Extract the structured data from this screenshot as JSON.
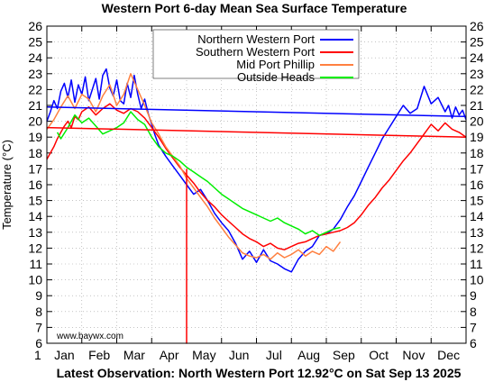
{
  "chart_data": {
    "type": "line",
    "title": "Western Port 6-day Mean Sea Surface Temperature",
    "ylabel": "Temperature (°C)",
    "xlabel": "",
    "footer": "Latest Observation: North Western Port 12.92°C on Sat Sep 13 2025",
    "watermark": "www.baywx.com",
    "ylim": [
      6,
      26
    ],
    "yticks": [
      6,
      7,
      8,
      9,
      10,
      11,
      12,
      13,
      14,
      15,
      16,
      17,
      18,
      19,
      20,
      21,
      22,
      23,
      24,
      25,
      26
    ],
    "xlim": [
      1,
      13
    ],
    "xticks": [
      {
        "x": 1,
        "label": "1"
      },
      {
        "x": 1.5,
        "label": "Jan"
      },
      {
        "x": 2.5,
        "label": "Feb"
      },
      {
        "x": 3.5,
        "label": "Mar"
      },
      {
        "x": 4.5,
        "label": "Apr"
      },
      {
        "x": 5.5,
        "label": "May"
      },
      {
        "x": 6.5,
        "label": "Jun"
      },
      {
        "x": 7.5,
        "label": "Jul"
      },
      {
        "x": 8.5,
        "label": "Aug"
      },
      {
        "x": 9.5,
        "label": "Sep"
      },
      {
        "x": 10.5,
        "label": "Oct"
      },
      {
        "x": 11.5,
        "label": "Nov"
      },
      {
        "x": 12.5,
        "label": "Dec"
      }
    ],
    "grid": true,
    "legend_position": "top-right",
    "series": [
      {
        "name": "Northern Western Port",
        "color": "#0000ff",
        "x": [
          1.0,
          1.1,
          1.2,
          1.3,
          1.4,
          1.5,
          1.6,
          1.7,
          1.8,
          1.9,
          2.0,
          2.1,
          2.2,
          2.3,
          2.4,
          2.5,
          2.6,
          2.7,
          2.8,
          2.9,
          3.0,
          3.1,
          3.2,
          3.3,
          3.4,
          3.5,
          3.6,
          3.7,
          3.8,
          3.9,
          4.0,
          4.1,
          4.2,
          4.4,
          4.6,
          4.8,
          5.0,
          5.2,
          5.4,
          5.6,
          5.8,
          6.0,
          6.2,
          6.4,
          6.6,
          6.8,
          7.0,
          7.2,
          7.4,
          7.6,
          7.8,
          8.0,
          8.2,
          8.4,
          8.6,
          8.8,
          9.0,
          9.2,
          9.4,
          9.6,
          9.8,
          10.0,
          10.2,
          10.4,
          10.6,
          10.8,
          11.0,
          11.2,
          11.4,
          11.6,
          11.8,
          12.0,
          12.2,
          12.4,
          12.5,
          12.6,
          12.7,
          12.8,
          12.9,
          13.0
        ],
        "y": [
          20.0,
          20.6,
          21.3,
          20.8,
          21.9,
          22.4,
          21.5,
          22.6,
          21.2,
          22.3,
          21.7,
          22.8,
          21.3,
          22.0,
          22.7,
          21.4,
          22.9,
          23.3,
          22.1,
          21.6,
          22.6,
          21.3,
          21.1,
          22.4,
          21.5,
          22.9,
          21.7,
          20.8,
          21.4,
          20.5,
          19.8,
          19.1,
          18.5,
          17.8,
          17.2,
          16.6,
          16.0,
          15.4,
          15.7,
          15.0,
          14.2,
          13.6,
          13.1,
          12.3,
          11.3,
          11.8,
          11.1,
          11.9,
          11.2,
          11.0,
          10.7,
          10.5,
          11.3,
          11.8,
          12.1,
          12.8,
          12.9,
          13.2,
          13.8,
          14.6,
          15.3,
          16.2,
          17.1,
          18.0,
          18.9,
          19.6,
          20.3,
          21.0,
          20.5,
          20.8,
          22.2,
          21.1,
          21.5,
          20.6,
          21.0,
          20.2,
          20.9,
          20.4,
          20.7,
          20.1
        ]
      },
      {
        "name": "Southern Western Port",
        "color": "#ff0000",
        "x": [
          1.0,
          1.1,
          1.2,
          1.3,
          1.4,
          1.5,
          1.6,
          1.7,
          1.8,
          1.9,
          2.0,
          2.2,
          2.4,
          2.6,
          2.8,
          3.0,
          3.2,
          3.4,
          3.6,
          3.8,
          4.0,
          4.2,
          4.4,
          4.6,
          4.8,
          5.0,
          5.2,
          5.4,
          5.6,
          5.8,
          6.0,
          6.2,
          6.4,
          6.6,
          6.8,
          7.0,
          7.2,
          7.4,
          7.6,
          7.8,
          8.0,
          8.2,
          8.4,
          8.6,
          8.8,
          9.0,
          9.2,
          9.4,
          9.6,
          9.8,
          10.0,
          10.2,
          10.4,
          10.6,
          10.8,
          11.0,
          11.2,
          11.4,
          11.6,
          11.8,
          12.0,
          12.2,
          12.4,
          12.6,
          12.8,
          13.0
        ],
        "y": [
          17.6,
          18.0,
          18.4,
          18.9,
          19.3,
          19.7,
          20.0,
          19.6,
          20.3,
          20.1,
          20.6,
          20.9,
          20.4,
          20.8,
          21.1,
          20.7,
          20.5,
          20.8,
          20.6,
          20.2,
          19.6,
          19.0,
          18.3,
          17.7,
          17.1,
          16.6,
          16.1,
          15.5,
          15.0,
          14.6,
          14.1,
          13.7,
          13.3,
          12.9,
          12.6,
          12.4,
          12.1,
          12.3,
          12.0,
          11.9,
          12.1,
          12.3,
          12.4,
          12.6,
          12.8,
          12.9,
          13.0,
          13.1,
          13.3,
          13.6,
          14.1,
          14.7,
          15.2,
          15.8,
          16.3,
          16.9,
          17.5,
          18.0,
          18.6,
          19.2,
          19.8,
          19.4,
          19.9,
          19.5,
          19.3,
          19.0
        ]
      },
      {
        "name": "Mid Port Phillip",
        "color": "#ff8040",
        "x": [
          1.0,
          1.2,
          1.4,
          1.6,
          1.8,
          2.0,
          2.2,
          2.4,
          2.6,
          2.8,
          3.0,
          3.2,
          3.4,
          3.6,
          3.8,
          4.0,
          4.2,
          4.4,
          4.6,
          4.8,
          5.0,
          5.2,
          5.4,
          5.6,
          5.8,
          6.0,
          6.2,
          6.4,
          6.6,
          6.8,
          7.0,
          7.2,
          7.4,
          7.6,
          7.8,
          8.0,
          8.2,
          8.4,
          8.6,
          8.8,
          9.0,
          9.2,
          9.4
        ],
        "y": [
          19.5,
          20.1,
          20.9,
          21.6,
          20.8,
          21.7,
          21.4,
          20.6,
          21.6,
          22.3,
          21.0,
          21.7,
          23.0,
          22.0,
          21.0,
          19.9,
          19.2,
          18.4,
          17.8,
          17.2,
          16.4,
          15.8,
          15.2,
          14.6,
          13.9,
          13.3,
          12.7,
          12.2,
          11.7,
          11.5,
          11.4,
          11.6,
          11.3,
          11.7,
          11.4,
          11.6,
          11.9,
          11.5,
          11.8,
          11.6,
          12.1,
          11.8,
          12.4
        ]
      },
      {
        "name": "Outside Heads",
        "color": "#00ee00",
        "x": [
          1.3,
          1.4,
          1.6,
          1.8,
          2.0,
          2.2,
          2.4,
          2.6,
          2.8,
          3.0,
          3.2,
          3.4,
          3.6,
          3.8,
          4.0,
          4.2,
          4.4,
          4.6,
          4.8,
          5.0,
          5.2,
          5.4,
          5.6,
          5.8,
          6.0,
          6.2,
          6.4,
          6.6,
          6.8,
          7.0,
          7.2,
          7.4,
          7.6,
          7.8,
          8.0,
          8.2,
          8.4,
          8.6,
          8.8,
          9.0,
          9.2,
          9.4
        ],
        "y": [
          19.3,
          18.9,
          19.6,
          20.4,
          19.9,
          20.2,
          19.7,
          19.2,
          19.4,
          19.6,
          19.9,
          20.6,
          20.1,
          19.8,
          19.0,
          18.4,
          18.0,
          17.8,
          17.5,
          17.1,
          16.8,
          16.5,
          16.2,
          15.8,
          15.4,
          15.1,
          14.8,
          14.5,
          14.3,
          14.1,
          13.9,
          13.7,
          13.9,
          13.6,
          13.4,
          13.2,
          12.9,
          13.1,
          12.8,
          13.0,
          13.2,
          13.3
        ]
      },
      {
        "name": "",
        "color": "#0000ff",
        "x": [
          1.0,
          13.0
        ],
        "y": [
          20.9,
          20.3
        ]
      },
      {
        "name": "",
        "color": "#ff0000",
        "x": [
          1.0,
          13.0
        ],
        "y": [
          19.6,
          19.0
        ]
      },
      {
        "name": "",
        "color": "#ff0000",
        "x": [
          5.0,
          5.0,
          5.0
        ],
        "y": [
          17.0,
          6.0,
          17.0
        ]
      }
    ]
  }
}
